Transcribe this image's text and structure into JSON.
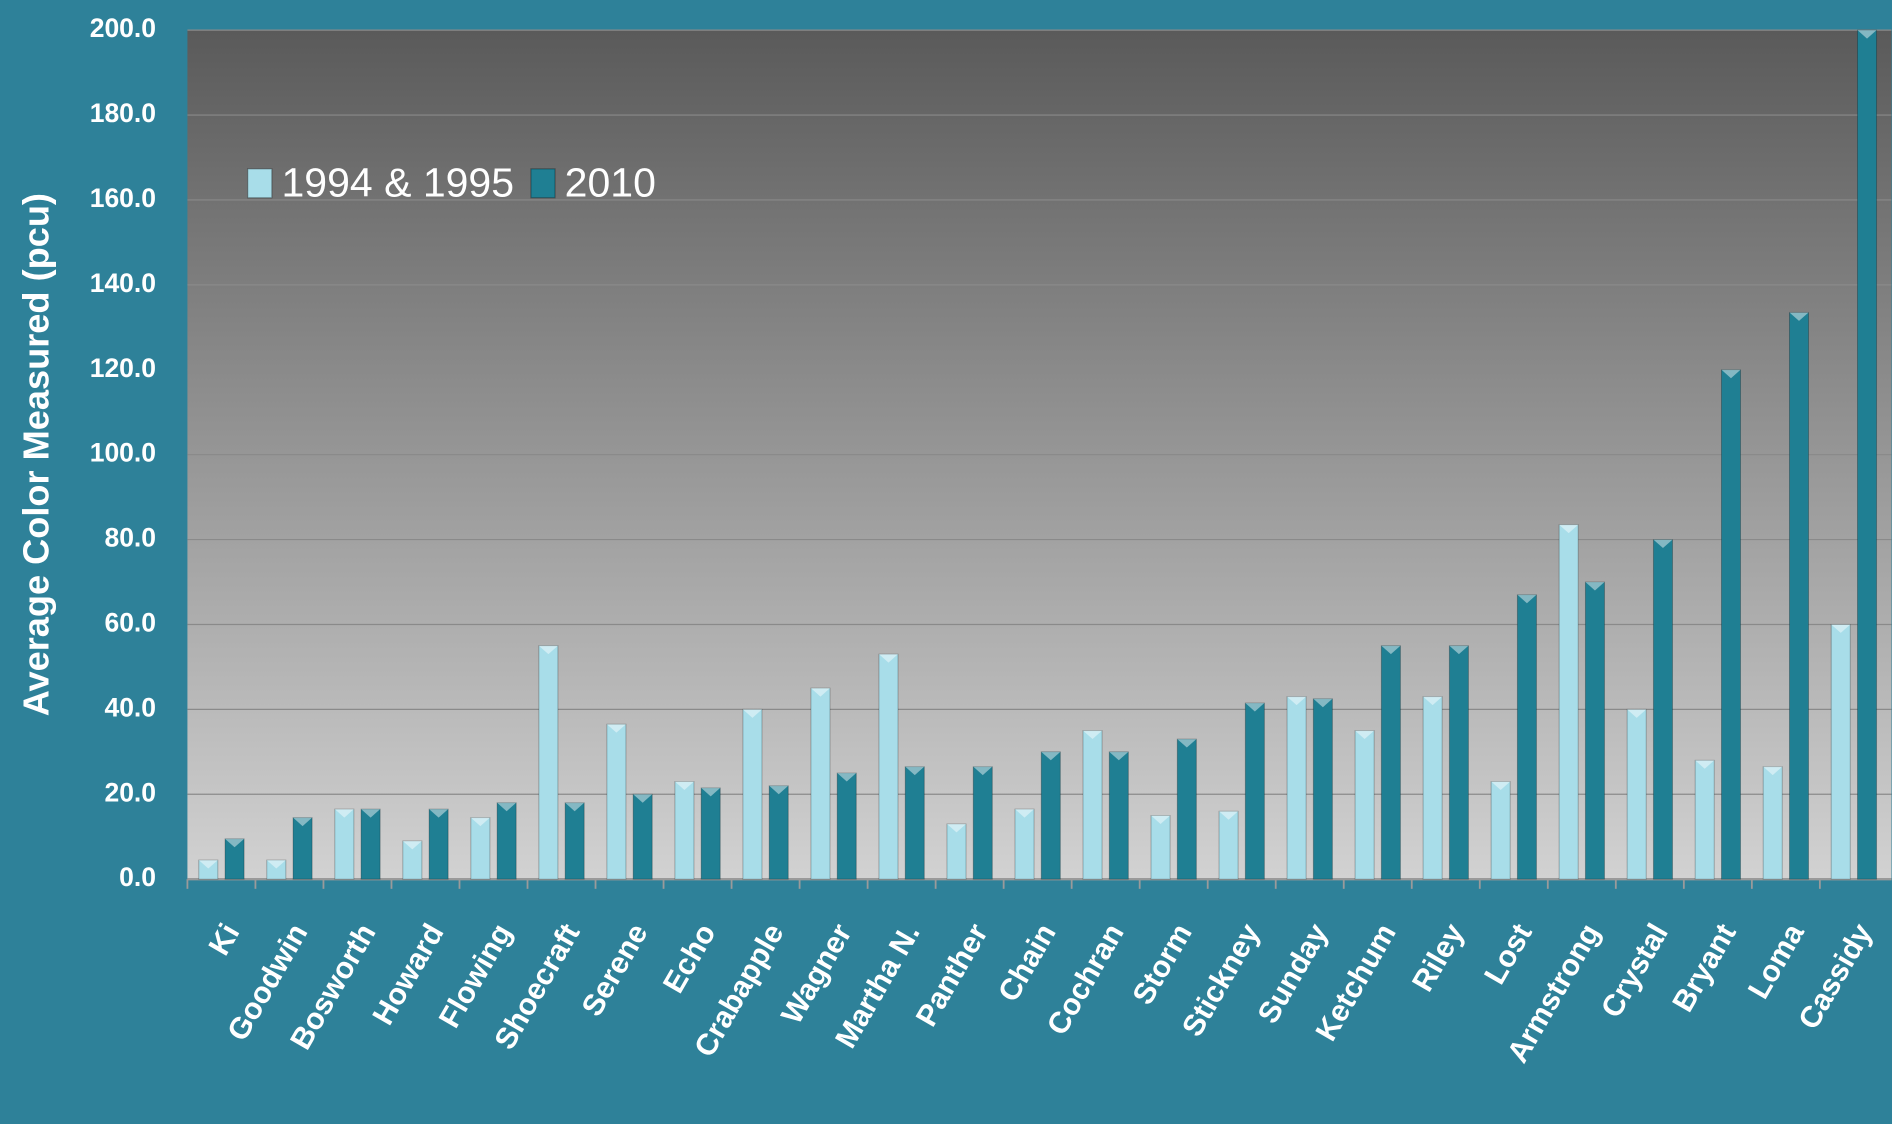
{
  "chart_data": {
    "type": "bar",
    "y_label": "Average Color Measured (pcu)",
    "categories": [
      "Ki",
      "Goodwin",
      "Bosworth",
      "Howard",
      "Flowing",
      "Shoecraft",
      "Serene",
      "Echo",
      "Crabapple",
      "Wagner",
      "Martha N.",
      "Panther",
      "Chain",
      "Cochran",
      "Storm",
      "Stickney",
      "Sunday",
      "Ketchum",
      "Riley",
      "Lost",
      "Armstrong",
      "Crystal",
      "Bryant",
      "Loma",
      "Cassidy"
    ],
    "series": [
      {
        "name": "1994 & 1995",
        "color": "#a8dde9",
        "values": [
          4.5,
          4.5,
          16.5,
          9,
          14.5,
          55,
          36.5,
          23,
          40,
          45,
          53,
          13,
          16.5,
          35,
          15,
          16,
          43,
          35,
          43,
          23,
          83.5,
          40,
          28,
          26.5,
          60
        ]
      },
      {
        "name": "2010",
        "color": "#1f7f93",
        "values": [
          9.5,
          14.5,
          16.5,
          16.5,
          18,
          18,
          20,
          21.5,
          22,
          25,
          26.5,
          26.5,
          30,
          30,
          33,
          41.5,
          42.5,
          55,
          55,
          67,
          70,
          80,
          120,
          133.5,
          200
        ]
      }
    ],
    "ylim": [
      0,
      200
    ],
    "yticks": [
      {
        "value": 0,
        "label": "0.0"
      },
      {
        "value": 20,
        "label": "20.0"
      },
      {
        "value": 40,
        "label": "40.0"
      },
      {
        "value": 60,
        "label": "60.0"
      },
      {
        "value": 80,
        "label": "80.0"
      },
      {
        "value": 100,
        "label": "100.0"
      },
      {
        "value": 120,
        "label": "120.0"
      },
      {
        "value": 140,
        "label": "140.0"
      },
      {
        "value": 160,
        "label": "160.0"
      },
      {
        "value": 180,
        "label": "180.0"
      },
      {
        "value": 200,
        "label": "200.0"
      }
    ],
    "grid": true,
    "legend": "top-left"
  }
}
